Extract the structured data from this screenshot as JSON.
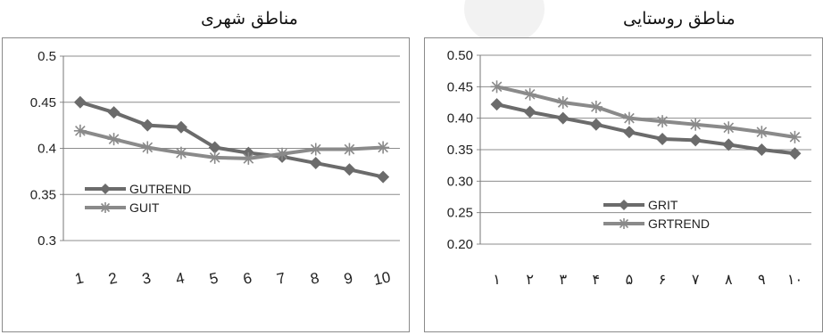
{
  "panels": {
    "left": {
      "title": "مناطق شهری"
    },
    "right": {
      "title": "مناطق روستایی"
    }
  },
  "chart_data": [
    {
      "type": "line",
      "title": "مناطق شهری",
      "categories": [
        "1",
        "2",
        "3",
        "4",
        "5",
        "6",
        "7",
        "8",
        "9",
        "10"
      ],
      "ylim": [
        0.3,
        0.5
      ],
      "yticks": [
        "0.3",
        "0.35",
        "0.4",
        "0.45",
        "0.5"
      ],
      "grid": true,
      "legend_position": "center-left",
      "series": [
        {
          "name": "GUTREND",
          "marker": "diamond",
          "color": "#6b6b6b",
          "values": [
            0.45,
            0.439,
            0.425,
            0.423,
            0.401,
            0.395,
            0.391,
            0.384,
            0.377,
            0.369
          ]
        },
        {
          "name": "GUIT",
          "marker": "star",
          "color": "#8a8a8a",
          "values": [
            0.419,
            0.41,
            0.401,
            0.395,
            0.39,
            0.389,
            0.394,
            0.399,
            0.399,
            0.401
          ]
        }
      ]
    },
    {
      "type": "line",
      "title": "مناطق روستایی",
      "categories": [
        "١",
        "٢",
        "٣",
        "۴",
        "۵",
        "۶",
        "٧",
        "٨",
        "٩",
        "١٠"
      ],
      "ylim": [
        0.2,
        0.5
      ],
      "yticks": [
        "0.20",
        "0.25",
        "0.30",
        "0.35",
        "0.40",
        "0.45",
        "0.50"
      ],
      "grid": true,
      "legend_position": "bottom-left",
      "series": [
        {
          "name": "GRIT",
          "marker": "diamond",
          "color": "#6b6b6b",
          "values": [
            0.422,
            0.41,
            0.4,
            0.39,
            0.378,
            0.367,
            0.365,
            0.358,
            0.35,
            0.344
          ]
        },
        {
          "name": "GRTREND",
          "marker": "star",
          "color": "#8a8a8a",
          "values": [
            0.45,
            0.438,
            0.425,
            0.418,
            0.4,
            0.395,
            0.39,
            0.385,
            0.378,
            0.37
          ]
        }
      ]
    }
  ]
}
